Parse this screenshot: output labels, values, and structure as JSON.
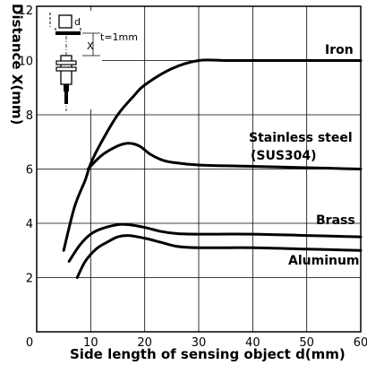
{
  "chart_data": {
    "type": "line",
    "title": "",
    "xlabel": "Side length of sensing object d(mm)",
    "ylabel": "Distance X(mm)",
    "xlim": [
      0,
      60
    ],
    "ylim": [
      0,
      12
    ],
    "xticks": [
      0,
      10,
      20,
      30,
      40,
      50,
      60
    ],
    "yticks": [
      2,
      4,
      6,
      8,
      10,
      12
    ],
    "grid": true,
    "series": [
      {
        "name": "Iron",
        "x": [
          5,
          7,
          9,
          10,
          12,
          15,
          18,
          20,
          25,
          30,
          35,
          40,
          50,
          60
        ],
        "y": [
          3.0,
          4.6,
          5.6,
          6.2,
          7.0,
          8.0,
          8.7,
          9.1,
          9.7,
          10.0,
          10.0,
          10.0,
          10.0,
          10.0
        ]
      },
      {
        "name": "Stainless steel (SUS304)",
        "x": [
          9.5,
          12,
          15,
          17,
          19,
          21,
          23,
          25,
          30,
          40,
          50,
          60
        ],
        "y": [
          6.0,
          6.5,
          6.85,
          6.95,
          6.85,
          6.55,
          6.35,
          6.25,
          6.15,
          6.1,
          6.05,
          6.0
        ]
      },
      {
        "name": "Brass",
        "x": [
          6,
          8,
          10,
          12,
          15,
          17,
          20,
          23,
          26,
          30,
          40,
          50,
          60
        ],
        "y": [
          2.6,
          3.2,
          3.6,
          3.8,
          3.95,
          3.95,
          3.85,
          3.7,
          3.62,
          3.6,
          3.6,
          3.55,
          3.5
        ]
      },
      {
        "name": "Aluminum",
        "x": [
          7.5,
          9,
          11,
          13,
          15,
          17,
          20,
          23,
          26,
          30,
          40,
          50,
          60
        ],
        "y": [
          2.0,
          2.6,
          3.05,
          3.3,
          3.5,
          3.55,
          3.45,
          3.3,
          3.15,
          3.1,
          3.1,
          3.05,
          3.0
        ]
      }
    ],
    "series_labels": {
      "iron": "Iron",
      "stainless_line1": "Stainless steel",
      "stainless_line2": "(SUS304)",
      "brass": "Brass",
      "aluminum": "Aluminum"
    },
    "annotations": {
      "inset_d": "d",
      "inset_x": "X",
      "inset_thickness": "t=1mm"
    }
  }
}
